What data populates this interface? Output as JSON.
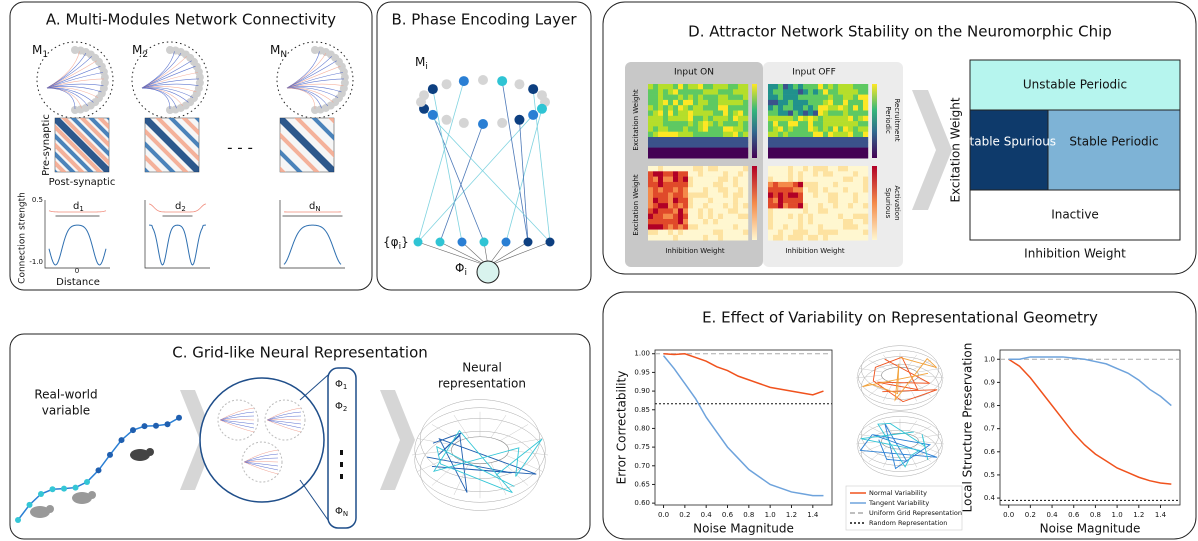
{
  "panel_a": {
    "title": "A. Multi-Modules Network Connectivity",
    "modules": [
      {
        "base": "M",
        "sub": "1",
        "distance": {
          "base": "d",
          "sub": "1"
        }
      },
      {
        "base": "M",
        "sub": "2",
        "distance": {
          "base": "d",
          "sub": "2"
        }
      },
      {
        "base": "M",
        "sub": "N",
        "distance": {
          "base": "d",
          "sub": "N"
        }
      }
    ],
    "matrix_y_label": "Pre-synaptic",
    "matrix_x_label": "Post-synaptic",
    "ellipsis": "- - -",
    "profile_y_label": "Connection strength",
    "profile_x_label": "Distance",
    "profile_x_tick": "0",
    "profile_y_ticks": [
      "0.5",
      "-1.0"
    ]
  },
  "panel_b": {
    "title": "B. Phase Encoding Layer",
    "module": {
      "base": "M",
      "sub": "i"
    },
    "phases": {
      "base": "{φ",
      "sub": "i",
      "close": "}"
    },
    "output": {
      "base": "Φ",
      "sub": "i"
    }
  },
  "panel_c": {
    "title": "C. Grid-like Neural Representation",
    "input_label": [
      "Real-world",
      "variable"
    ],
    "phases": [
      {
        "base": "Φ",
        "sub": "1"
      },
      {
        "base": "Φ",
        "sub": "2"
      },
      {
        "base": "Φ",
        "sub": "N"
      }
    ],
    "output_label": [
      "Neural",
      "representation"
    ]
  },
  "panel_d": {
    "title": "D. Attractor Network Stability on the Neuromorphic Chip",
    "conditions": [
      "Input ON",
      "Input OFF"
    ],
    "heatmap_y_label": "Excitation Weight",
    "heatmap_x_label": "Inhibition Weight",
    "colorbar_labels": [
      [
        "Periodic",
        "Recruitment"
      ],
      [
        "Spurious",
        "Activation"
      ]
    ],
    "regions": [
      "Unstable Periodic",
      "Stable Spurious",
      "Stable Periodic",
      "Inactive"
    ],
    "phase_y_label": "Excitation Weight",
    "phase_x_label": "Inhibition Weight"
  },
  "panel_e": {
    "title": "E. Effect of Variability on Representational Geometry"
  },
  "chart_data": [
    {
      "type": "line",
      "y_label": "Error Correctability",
      "x_label": "Noise Magnitude",
      "x": [
        0.0,
        0.1,
        0.2,
        0.3,
        0.4,
        0.5,
        0.6,
        0.7,
        0.8,
        0.9,
        1.0,
        1.1,
        1.2,
        1.3,
        1.4,
        1.5
      ],
      "series": [
        {
          "name": "Normal Variability",
          "color": "#f0521d",
          "values": [
            1.0,
            0.998,
            1.0,
            0.99,
            0.98,
            0.965,
            0.955,
            0.94,
            0.93,
            0.92,
            0.91,
            0.905,
            0.9,
            0.895,
            0.89,
            0.9
          ]
        },
        {
          "name": "Tangent Variability",
          "color": "#6ea3dc",
          "values": [
            0.995,
            0.96,
            0.92,
            0.88,
            0.83,
            0.79,
            0.75,
            0.72,
            0.69,
            0.67,
            0.65,
            0.64,
            0.63,
            0.625,
            0.62,
            0.62
          ]
        }
      ],
      "reference_lines": [
        {
          "name": "Uniform Grid Representation",
          "value": 1.0,
          "color": "#aaaaaa",
          "dash": "5 3"
        },
        {
          "name": "Random Representation",
          "value": 0.866,
          "color": "#111111",
          "dash": "2 2"
        }
      ],
      "xlim": [
        -0.08,
        1.58
      ],
      "ylim": [
        0.595,
        1.01
      ],
      "xticks": [
        {
          "value": 0,
          "label": "0.0"
        },
        0.2,
        0.4,
        0.6,
        0.8,
        {
          "value": 1,
          "label": "1.0"
        },
        1.2,
        1.4
      ],
      "yticks": [
        {
          "value": 0.6,
          "label": "0.60"
        },
        0.65,
        {
          "value": 0.7,
          "label": "0.70"
        },
        0.75,
        {
          "value": 0.8,
          "label": "0.80"
        },
        0.85,
        {
          "value": 0.9,
          "label": "0.90"
        },
        0.95,
        {
          "value": 1,
          "label": "1.00"
        }
      ]
    },
    {
      "type": "line",
      "y_label": "Local Structure Preservation",
      "x_label": "Noise Magnitude",
      "x": [
        0.0,
        0.1,
        0.2,
        0.3,
        0.4,
        0.5,
        0.6,
        0.7,
        0.8,
        0.9,
        1.0,
        1.1,
        1.2,
        1.3,
        1.4,
        1.5
      ],
      "series": [
        {
          "color": "#f0521d",
          "values": [
            1.0,
            0.97,
            0.92,
            0.86,
            0.8,
            0.74,
            0.68,
            0.63,
            0.59,
            0.56,
            0.53,
            0.51,
            0.49,
            0.475,
            0.465,
            0.46
          ]
        },
        {
          "color": "#6ea3dc",
          "values": [
            1.0,
            1.0,
            1.01,
            1.01,
            1.01,
            1.01,
            1.005,
            1.0,
            0.99,
            0.98,
            0.96,
            0.94,
            0.91,
            0.87,
            0.84,
            0.8
          ]
        }
      ],
      "reference_lines": [
        {
          "value": 1.0,
          "color": "#aaaaaa",
          "dash": "5 3"
        },
        {
          "value": 0.39,
          "color": "#111111",
          "dash": "2 2"
        }
      ],
      "xlim": [
        -0.08,
        1.58
      ],
      "ylim": [
        0.37,
        1.04
      ],
      "xticks": [
        {
          "value": 0,
          "label": "0.0"
        },
        0.2,
        0.4,
        0.6,
        0.8,
        {
          "value": 1,
          "label": "1.0"
        },
        1.2,
        1.4
      ],
      "yticks": [
        0.4,
        0.5,
        0.6,
        0.7,
        0.8,
        0.9,
        {
          "value": 1,
          "label": "1.0"
        }
      ]
    }
  ]
}
